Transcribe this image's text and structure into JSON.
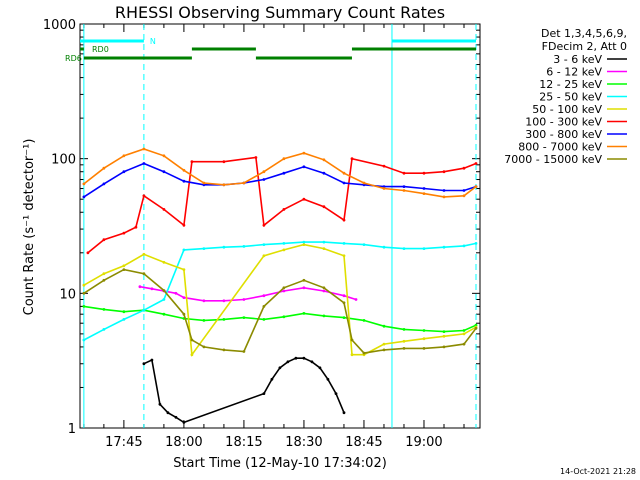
{
  "chart_data": {
    "type": "line",
    "title": "RHESSI Observing Summary Count Rates",
    "xlabel": "Start Time (12-May-10 17:34:02)",
    "ylabel": "Count Rate (s⁻¹ detector⁻¹)",
    "yscale": "log",
    "ylim": [
      1,
      1000
    ],
    "xlim": [
      "17:34:02",
      "19:14:00"
    ],
    "x_ticks": [
      "17:45",
      "18:00",
      "18:15",
      "18:30",
      "18:45",
      "19:00"
    ],
    "y_ticks": [
      "1",
      "10",
      "100",
      "1000"
    ],
    "legend_header": [
      "Det 1,3,4,5,6,9,",
      "FDecim 2, Att 0"
    ],
    "legend_position": "right",
    "series": [
      {
        "name": "3 - 6 keV",
        "color": "#000000",
        "x": [
          "17:50",
          "17:52",
          "17:54",
          "17:56",
          "17:58",
          "18:00",
          "18:20",
          "18:22",
          "18:24",
          "18:26",
          "18:28",
          "18:30",
          "18:32",
          "18:34",
          "18:36",
          "18:38",
          "18:40"
        ],
        "values": [
          3.0,
          3.2,
          1.5,
          1.3,
          1.2,
          1.1,
          1.8,
          2.3,
          2.8,
          3.1,
          3.3,
          3.3,
          3.1,
          2.8,
          2.3,
          1.8,
          1.3
        ]
      },
      {
        "name": "6 - 12 keV",
        "color": "#ff00ff",
        "x": [
          "17:49",
          "17:52",
          "17:55",
          "17:58",
          "18:00",
          "18:05",
          "18:10",
          "18:15",
          "18:20",
          "18:25",
          "18:30",
          "18:35",
          "18:40",
          "18:43"
        ],
        "values": [
          11.2,
          10.8,
          10.4,
          10.0,
          9.3,
          8.8,
          8.8,
          9.0,
          9.6,
          10.4,
          11.0,
          10.4,
          9.6,
          9.0
        ]
      },
      {
        "name": "12 - 25 keV",
        "color": "#00ff00",
        "x": [
          "17:35",
          "17:40",
          "17:45",
          "17:50",
          "17:55",
          "18:00",
          "18:05",
          "18:10",
          "18:15",
          "18:20",
          "18:25",
          "18:30",
          "18:35",
          "18:40",
          "18:45",
          "18:50",
          "18:55",
          "19:00",
          "19:05",
          "19:10",
          "19:13"
        ],
        "values": [
          8.0,
          7.6,
          7.3,
          7.5,
          7.0,
          6.5,
          6.3,
          6.4,
          6.6,
          6.4,
          6.7,
          7.1,
          6.8,
          6.6,
          6.3,
          5.7,
          5.4,
          5.3,
          5.2,
          5.3,
          5.8
        ]
      },
      {
        "name": "25 - 50 keV",
        "color": "#00ffff",
        "x": [
          "17:35",
          "17:40",
          "17:45",
          "17:50",
          "17:55",
          "18:00",
          "18:05",
          "18:10",
          "18:15",
          "18:20",
          "18:25",
          "18:30",
          "18:35",
          "18:40",
          "18:45",
          "18:50",
          "18:55",
          "19:00",
          "19:05",
          "19:10",
          "19:13"
        ],
        "values": [
          4.5,
          5.4,
          6.4,
          7.5,
          9.0,
          21.0,
          21.5,
          22.0,
          22.3,
          23.0,
          23.5,
          24.0,
          24.0,
          23.5,
          23.0,
          22.0,
          21.5,
          21.5,
          22.0,
          22.5,
          23.5
        ]
      },
      {
        "name": "50 - 100 keV",
        "color": "#dfdf00",
        "x": [
          "17:35",
          "17:40",
          "17:45",
          "17:50",
          "17:55",
          "18:00",
          "18:02",
          "18:20",
          "18:25",
          "18:30",
          "18:35",
          "18:40",
          "18:42",
          "18:45",
          "18:50",
          "18:55",
          "19:00",
          "19:05",
          "19:10",
          "19:13"
        ],
        "values": [
          11.5,
          14.0,
          16.0,
          19.5,
          17.0,
          15.0,
          3.5,
          19.0,
          21.0,
          23.0,
          21.5,
          19.0,
          3.5,
          3.5,
          4.2,
          4.4,
          4.6,
          4.8,
          5.0,
          5.6
        ]
      },
      {
        "name": "100 - 300 keV",
        "color": "#ff0000",
        "x": [
          "17:36",
          "17:40",
          "17:45",
          "17:48",
          "17:50",
          "17:55",
          "18:00",
          "18:02",
          "18:10",
          "18:18",
          "18:20",
          "18:25",
          "18:30",
          "18:35",
          "18:40",
          "18:42",
          "18:50",
          "18:55",
          "19:00",
          "19:05",
          "19:10",
          "19:13"
        ],
        "values": [
          20.0,
          25.0,
          28.0,
          31.0,
          53.0,
          42.0,
          32.0,
          95.0,
          95.0,
          102.0,
          32.0,
          42.0,
          50.0,
          44.0,
          35.0,
          100.0,
          88.0,
          78.0,
          78.0,
          80.0,
          85.0,
          92.0
        ]
      },
      {
        "name": "300 - 800 keV",
        "color": "#0000ff",
        "x": [
          "17:35",
          "17:40",
          "17:45",
          "17:50",
          "17:55",
          "18:00",
          "18:05",
          "18:10",
          "18:15",
          "18:20",
          "18:25",
          "18:30",
          "18:35",
          "18:40",
          "18:45",
          "18:50",
          "18:55",
          "19:00",
          "19:05",
          "19:10",
          "19:13"
        ],
        "values": [
          52.0,
          65.0,
          80.0,
          92.0,
          80.0,
          68.0,
          64.0,
          64.0,
          66.0,
          70.0,
          78.0,
          87.0,
          78.0,
          66.0,
          64.0,
          62.0,
          62.0,
          60.0,
          58.0,
          58.0,
          62.0
        ]
      },
      {
        "name": "800 - 7000 keV",
        "color": "#ff8000",
        "x": [
          "17:35",
          "17:40",
          "17:45",
          "17:50",
          "17:55",
          "18:00",
          "18:05",
          "18:10",
          "18:15",
          "18:20",
          "18:25",
          "18:30",
          "18:35",
          "18:40",
          "18:45",
          "18:50",
          "18:55",
          "19:00",
          "19:05",
          "19:10",
          "19:13"
        ],
        "values": [
          65.0,
          85.0,
          105.0,
          118.0,
          105.0,
          82.0,
          66.0,
          64.0,
          66.0,
          80.0,
          100.0,
          110.0,
          98.0,
          78.0,
          66.0,
          60.0,
          58.0,
          55.0,
          52.0,
          53.0,
          62.0
        ]
      },
      {
        "name": "7000 - 15000 keV",
        "color": "#8b8b00",
        "x": [
          "17:35",
          "17:40",
          "17:45",
          "17:50",
          "17:55",
          "18:00",
          "18:02",
          "18:05",
          "18:10",
          "18:15",
          "18:20",
          "18:25",
          "18:30",
          "18:35",
          "18:40",
          "18:42",
          "18:45",
          "18:50",
          "18:55",
          "19:00",
          "19:05",
          "19:10",
          "19:13"
        ],
        "values": [
          10.0,
          12.5,
          15.0,
          14.0,
          10.5,
          7.0,
          4.5,
          4.0,
          3.8,
          3.7,
          8.0,
          11.0,
          12.5,
          11.0,
          8.5,
          4.5,
          3.6,
          3.8,
          3.9,
          3.9,
          4.0,
          4.2,
          5.5
        ]
      }
    ],
    "flag_bars": [
      {
        "label": "N",
        "color": "#00ffff",
        "x_start": "17:34:02",
        "x_end": "17:50",
        "row": 1
      },
      {
        "label": "",
        "color": "#00ffff",
        "x_start": "18:52",
        "x_end": "19:13",
        "row": 1
      },
      {
        "label": "RD0",
        "color": "#008000",
        "x_start": "17:34:02",
        "x_end": "17:35",
        "row": 2
      },
      {
        "label": "",
        "color": "#008000",
        "x_start": "18:02",
        "x_end": "18:18",
        "row": 2
      },
      {
        "label": "",
        "color": "#008000",
        "x_start": "18:42",
        "x_end": "19:13",
        "row": 2
      },
      {
        "label": "RD6",
        "color": "#008000",
        "x_start": "17:35",
        "x_end": "18:02",
        "row": 3
      },
      {
        "label": "",
        "color": "#008000",
        "x_start": "18:18",
        "x_end": "18:42",
        "row": 3
      }
    ],
    "vertical_lines": [
      {
        "x": "17:35",
        "color": "#00ffff",
        "style": "solid"
      },
      {
        "x": "17:50",
        "color": "#00ffff",
        "style": "dashed"
      },
      {
        "x": "18:52",
        "color": "#00ffff",
        "style": "solid"
      },
      {
        "x": "19:13",
        "color": "#00ffff",
        "style": "dashed"
      }
    ],
    "footer_date": "14-Oct-2021 21:28"
  }
}
